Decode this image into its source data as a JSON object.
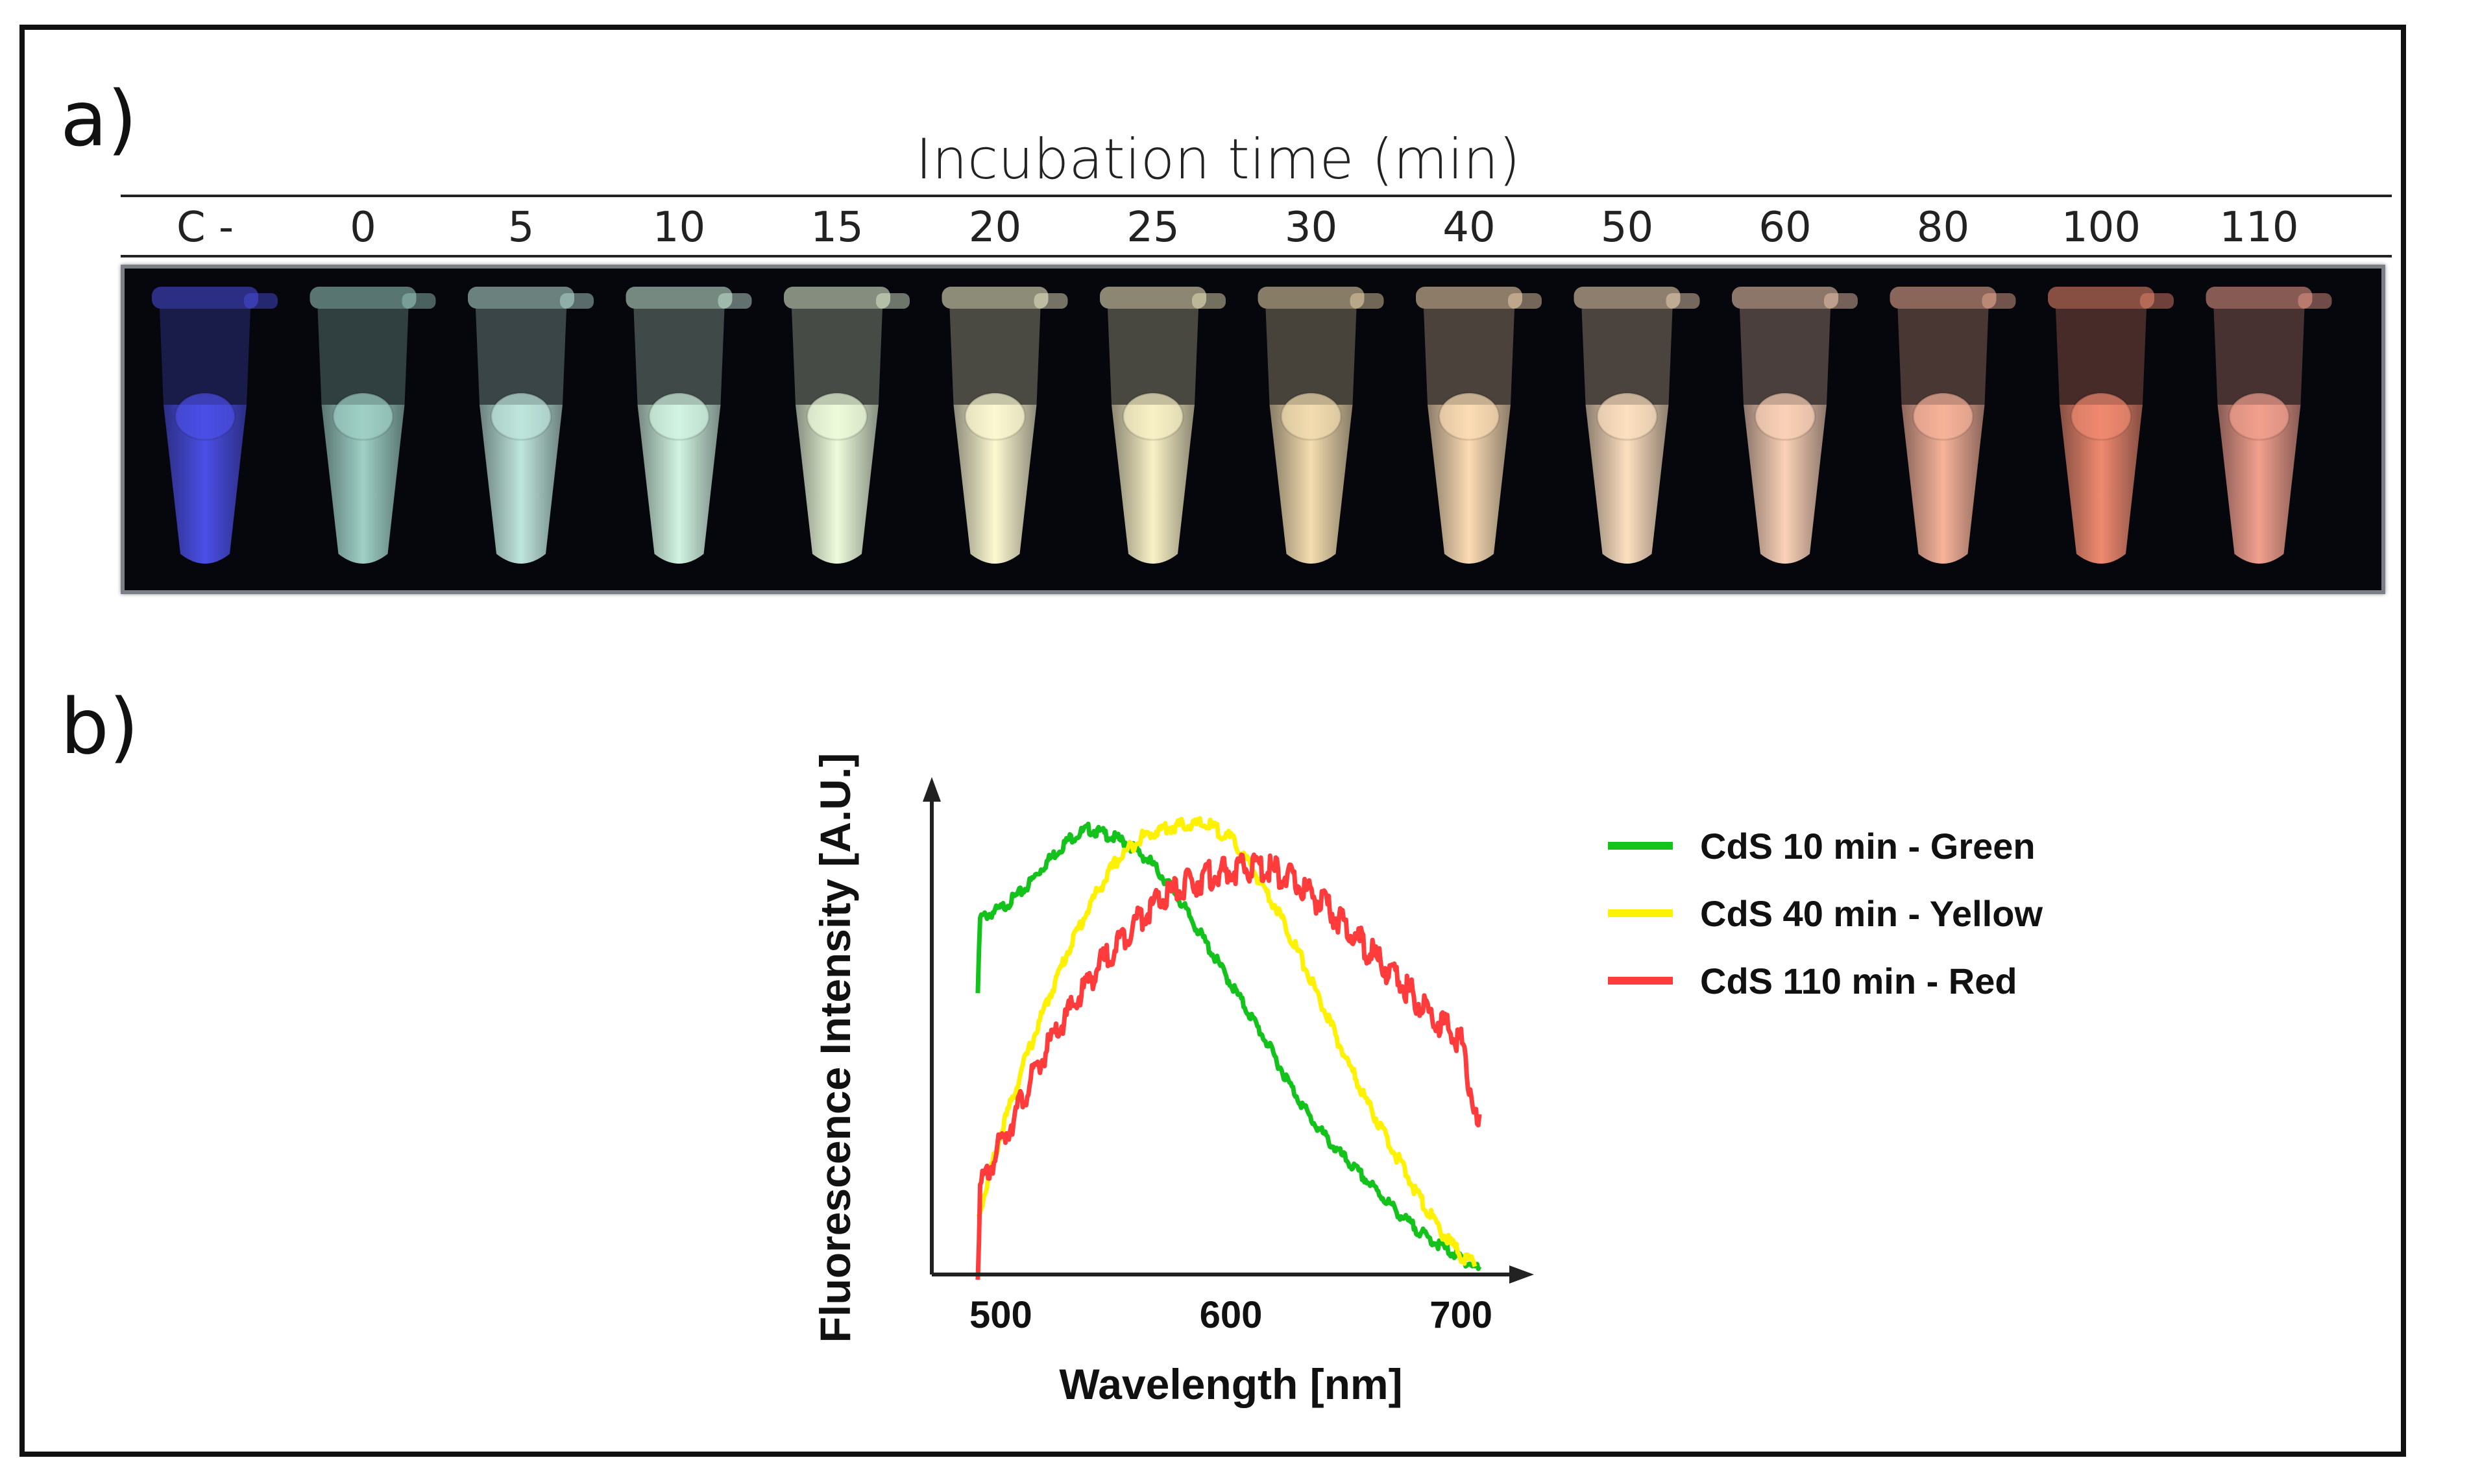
{
  "panel_a": {
    "label": "a)",
    "title": "Incubation time (min)",
    "tube_labels": [
      "C -",
      "0",
      "5",
      "10",
      "15",
      "20",
      "25",
      "30",
      "40",
      "50",
      "60",
      "80",
      "100",
      "110"
    ],
    "tube_colors": [
      "#4b4fe6",
      "#9fd0c6",
      "#bfe6dc",
      "#d2f4e2",
      "#eefcdc",
      "#fdf9d2",
      "#f9f1c6",
      "#f3ddb0",
      "#fbdcb4",
      "#fde0c0",
      "#fbd2b8",
      "#f7b39a",
      "#f08a70",
      "#f2a08e"
    ]
  },
  "panel_b": {
    "label": "b)"
  },
  "chart_data": {
    "type": "line",
    "title": "",
    "xlabel": "Wavelength [nm]",
    "ylabel": "Fluorescence Intensity [A.U.]",
    "xlim": [
      470,
      730
    ],
    "ylim": [
      0,
      1.05
    ],
    "xticks": [
      500,
      600,
      700
    ],
    "yticks": [],
    "grid": false,
    "legend": "right",
    "series": [
      {
        "name": "CdS 10 min - Green",
        "color": "#14c21c",
        "x": [
          490,
          491,
          500,
          510,
          520,
          530,
          538,
          545,
          555,
          565,
          575,
          585,
          595,
          605,
          615,
          625,
          635,
          645,
          655,
          665,
          675,
          685,
          695,
          705,
          708
        ],
        "y": [
          0.6,
          0.76,
          0.78,
          0.82,
          0.88,
          0.93,
          0.95,
          0.94,
          0.92,
          0.88,
          0.82,
          0.74,
          0.66,
          0.58,
          0.5,
          0.41,
          0.33,
          0.27,
          0.22,
          0.17,
          0.12,
          0.08,
          0.05,
          0.02,
          0.01
        ]
      },
      {
        "name": "CdS 40 min - Yellow",
        "color": "#fff200",
        "x": [
          490,
          500,
          510,
          520,
          530,
          540,
          550,
          560,
          570,
          580,
          590,
          600,
          610,
          620,
          630,
          640,
          650,
          660,
          670,
          680,
          690,
          700,
          706
        ],
        "y": [
          0.12,
          0.3,
          0.45,
          0.58,
          0.7,
          0.8,
          0.88,
          0.93,
          0.95,
          0.96,
          0.96,
          0.93,
          0.86,
          0.78,
          0.68,
          0.57,
          0.46,
          0.36,
          0.27,
          0.18,
          0.1,
          0.04,
          0.02
        ]
      },
      {
        "name": "CdS 110 min - Red",
        "color": "#ff3b3b",
        "x": [
          490,
          491,
          500,
          510,
          520,
          530,
          540,
          550,
          560,
          570,
          580,
          590,
          600,
          610,
          620,
          630,
          640,
          650,
          660,
          670,
          680,
          690,
          700,
          707,
          708
        ],
        "y": [
          0.02,
          0.18,
          0.28,
          0.38,
          0.48,
          0.56,
          0.64,
          0.7,
          0.76,
          0.8,
          0.83,
          0.85,
          0.86,
          0.87,
          0.86,
          0.83,
          0.79,
          0.74,
          0.69,
          0.64,
          0.59,
          0.54,
          0.5,
          0.32,
          0.31
        ]
      }
    ]
  }
}
